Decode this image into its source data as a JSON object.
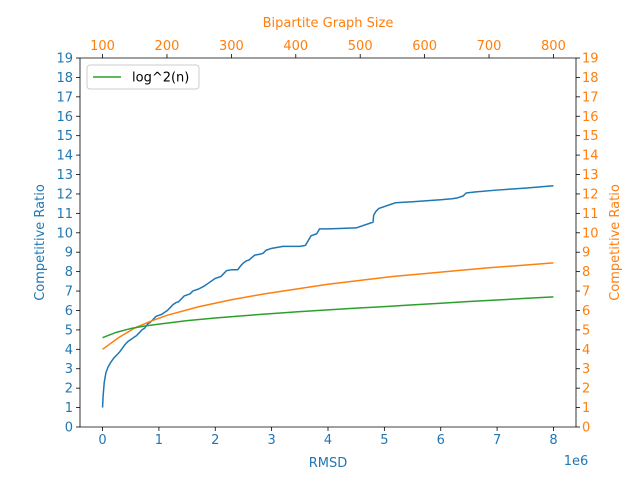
{
  "chart_data": {
    "type": "line",
    "colors": {
      "blue": "#1f77b4",
      "orange": "#ff7f0e",
      "green": "#2ca02c"
    },
    "bottom_axis": {
      "label": "RMSD",
      "range": [
        -400000,
        8400000
      ],
      "ticks": [
        0,
        1000000,
        2000000,
        3000000,
        4000000,
        5000000,
        6000000,
        7000000,
        8000000
      ],
      "tick_labels": [
        "0",
        "1",
        "2",
        "3",
        "4",
        "5",
        "6",
        "7",
        "8"
      ],
      "offset_label": "1e6",
      "color": "#1f77b4"
    },
    "top_axis": {
      "label": "Bipartite Graph Size",
      "range": [
        65,
        835
      ],
      "ticks": [
        100,
        200,
        300,
        400,
        500,
        600,
        700,
        800
      ],
      "tick_labels": [
        "100",
        "200",
        "300",
        "400",
        "500",
        "600",
        "700",
        "800"
      ],
      "color": "#ff7f0e"
    },
    "left_axis": {
      "label": "Competitive Ratio",
      "range": [
        0,
        19
      ],
      "ticks": [
        0,
        1,
        2,
        3,
        4,
        5,
        6,
        7,
        8,
        9,
        10,
        11,
        12,
        13,
        14,
        15,
        16,
        17,
        18,
        19
      ],
      "tick_labels": [
        "0",
        "1",
        "2",
        "3",
        "4",
        "5",
        "6",
        "7",
        "8",
        "9",
        "10",
        "11",
        "12",
        "13",
        "14",
        "15",
        "16",
        "17",
        "18",
        "19"
      ],
      "color": "#1f77b4"
    },
    "right_axis": {
      "label": "Competitive Ratio",
      "range": [
        0,
        19
      ],
      "ticks": [
        0,
        1,
        2,
        3,
        4,
        5,
        6,
        7,
        8,
        9,
        10,
        11,
        12,
        13,
        14,
        15,
        16,
        17,
        18,
        19
      ],
      "tick_labels": [
        "0",
        "1",
        "2",
        "3",
        "4",
        "5",
        "6",
        "7",
        "8",
        "9",
        "10",
        "11",
        "12",
        "13",
        "14",
        "15",
        "16",
        "17",
        "18",
        "19"
      ],
      "color": "#ff7f0e"
    },
    "legend": {
      "placement": "top-left",
      "entries": [
        "log^2(n)"
      ]
    },
    "grid": false,
    "series": [
      {
        "color": "#1f77b4",
        "axis": "bottom",
        "x": [
          0,
          10000,
          30000,
          60000,
          100000,
          150000,
          200000,
          250000,
          300000,
          350000,
          400000,
          450000,
          500000,
          550000,
          600000,
          650000,
          700000,
          750000,
          800000,
          850000,
          900000,
          950000,
          1000000,
          1050000,
          1100000,
          1150000,
          1200000,
          1250000,
          1300000,
          1350000,
          1400000,
          1450000,
          1500000,
          1550000,
          1600000,
          1650000,
          1700000,
          1800000,
          1900000,
          2000000,
          2100000,
          2150000,
          2200000,
          2300000,
          2400000,
          2450000,
          2500000,
          2550000,
          2600000,
          2700000,
          2800000,
          2850000,
          2900000,
          3000000,
          3100000,
          3200000,
          3300000,
          3400000,
          3500000,
          3600000,
          3650000,
          3700000,
          3750000,
          3800000,
          3850000,
          4000000,
          4200000,
          4500000,
          4800000,
          4810000,
          4850000,
          4900000,
          5000000,
          5100000,
          5200000,
          5500000,
          6000000,
          6200000,
          6300000,
          6400000,
          6450000,
          6600000,
          7000000,
          7500000,
          8000000
        ],
        "y": [
          1.0,
          1.6,
          2.3,
          2.8,
          3.1,
          3.35,
          3.55,
          3.7,
          3.85,
          4.05,
          4.25,
          4.4,
          4.5,
          4.6,
          4.7,
          4.85,
          5.0,
          5.1,
          5.3,
          5.4,
          5.55,
          5.7,
          5.75,
          5.8,
          5.9,
          6.0,
          6.15,
          6.3,
          6.4,
          6.45,
          6.6,
          6.75,
          6.8,
          6.85,
          7.0,
          7.05,
          7.1,
          7.25,
          7.45,
          7.65,
          7.75,
          7.9,
          8.05,
          8.1,
          8.1,
          8.3,
          8.45,
          8.55,
          8.6,
          8.85,
          8.9,
          8.95,
          9.1,
          9.2,
          9.25,
          9.3,
          9.3,
          9.3,
          9.3,
          9.35,
          9.6,
          9.85,
          9.9,
          9.95,
          10.2,
          10.2,
          10.22,
          10.25,
          10.55,
          10.9,
          11.1,
          11.25,
          11.35,
          11.45,
          11.55,
          11.6,
          11.7,
          11.75,
          11.8,
          11.9,
          12.05,
          12.1,
          12.2,
          12.3,
          12.42
        ]
      },
      {
        "color": "#ff7f0e",
        "axis": "top",
        "x": [
          100,
          125,
          150,
          175,
          200,
          250,
          300,
          350,
          400,
          450,
          500,
          550,
          600,
          650,
          700,
          750,
          800
        ],
        "y": [
          4.0,
          4.6,
          5.1,
          5.45,
          5.75,
          6.2,
          6.55,
          6.85,
          7.1,
          7.35,
          7.55,
          7.75,
          7.9,
          8.05,
          8.2,
          8.32,
          8.45
        ]
      },
      {
        "name": "log^2(n)",
        "color": "#2ca02c",
        "axis": "bottom",
        "x": [
          0,
          250000,
          500000,
          750000,
          1000000,
          1500000,
          2000000,
          2500000,
          3000000,
          3500000,
          4000000,
          4500000,
          5000000,
          5500000,
          6000000,
          6500000,
          7000000,
          7500000,
          8000000
        ],
        "y": [
          4.6,
          4.88,
          5.07,
          5.2,
          5.3,
          5.48,
          5.61,
          5.73,
          5.84,
          5.94,
          6.03,
          6.12,
          6.2,
          6.29,
          6.37,
          6.46,
          6.54,
          6.62,
          6.7
        ]
      }
    ]
  }
}
